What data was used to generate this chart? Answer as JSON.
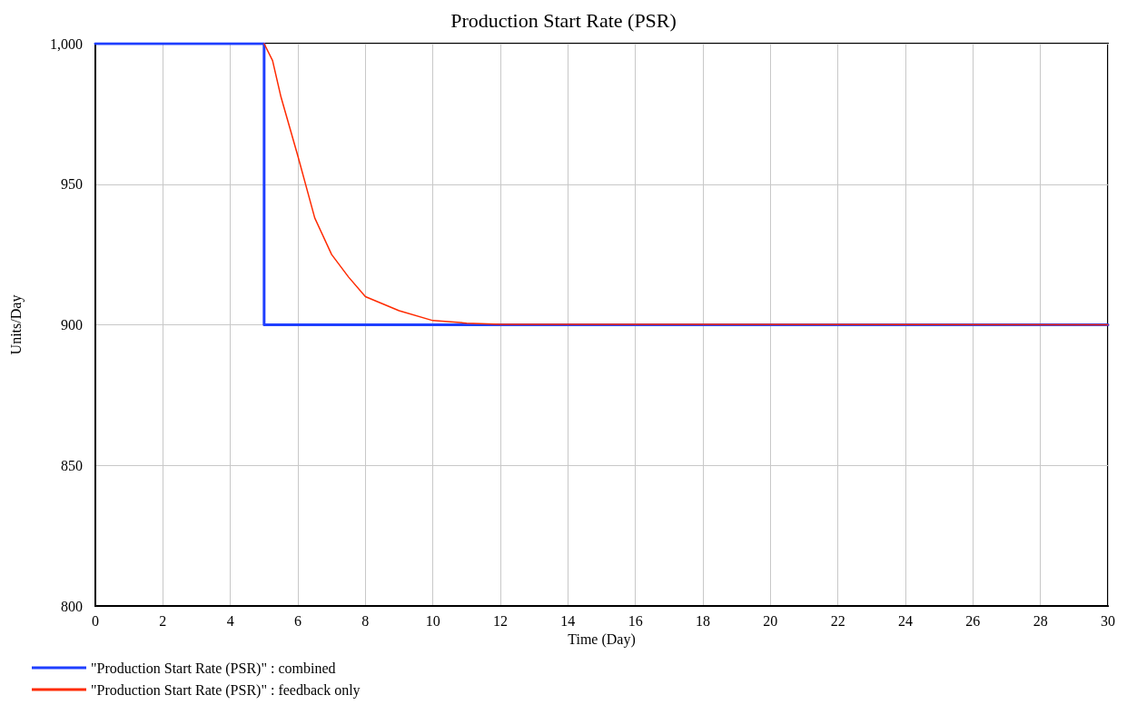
{
  "chart_data": {
    "type": "line",
    "title": "Production Start Rate (PSR)",
    "xlabel": "Time (Day)",
    "ylabel": "Units/Day",
    "series": [
      {
        "name": "\"Production Start Rate (PSR)\" : combined",
        "color": "#1f3fff",
        "x": [
          0,
          5,
          5,
          30
        ],
        "values": [
          1000,
          1000,
          900,
          900
        ]
      },
      {
        "name": "\"Production Start Rate (PSR)\" : feedback only",
        "color": "#ff2a00",
        "x": [
          5,
          5.25,
          5.5,
          6,
          6.5,
          7,
          7.5,
          8,
          9,
          10,
          11,
          12,
          30
        ],
        "values": [
          1000,
          994,
          981,
          960,
          938,
          925,
          917,
          910,
          905,
          901.5,
          900.6,
          900.2,
          900
        ]
      }
    ],
    "xlim": [
      0,
      30
    ],
    "xticks": [
      0,
      2,
      4,
      6,
      8,
      10,
      12,
      14,
      16,
      18,
      20,
      22,
      24,
      26,
      28,
      30
    ],
    "ylim": [
      800,
      1000
    ],
    "yticks": [
      800,
      850,
      900,
      950,
      {
        "value": 1000,
        "label": "1,000"
      }
    ],
    "grid": true,
    "legend": "bottom left",
    "marker": "none",
    "line_style": "solid"
  }
}
